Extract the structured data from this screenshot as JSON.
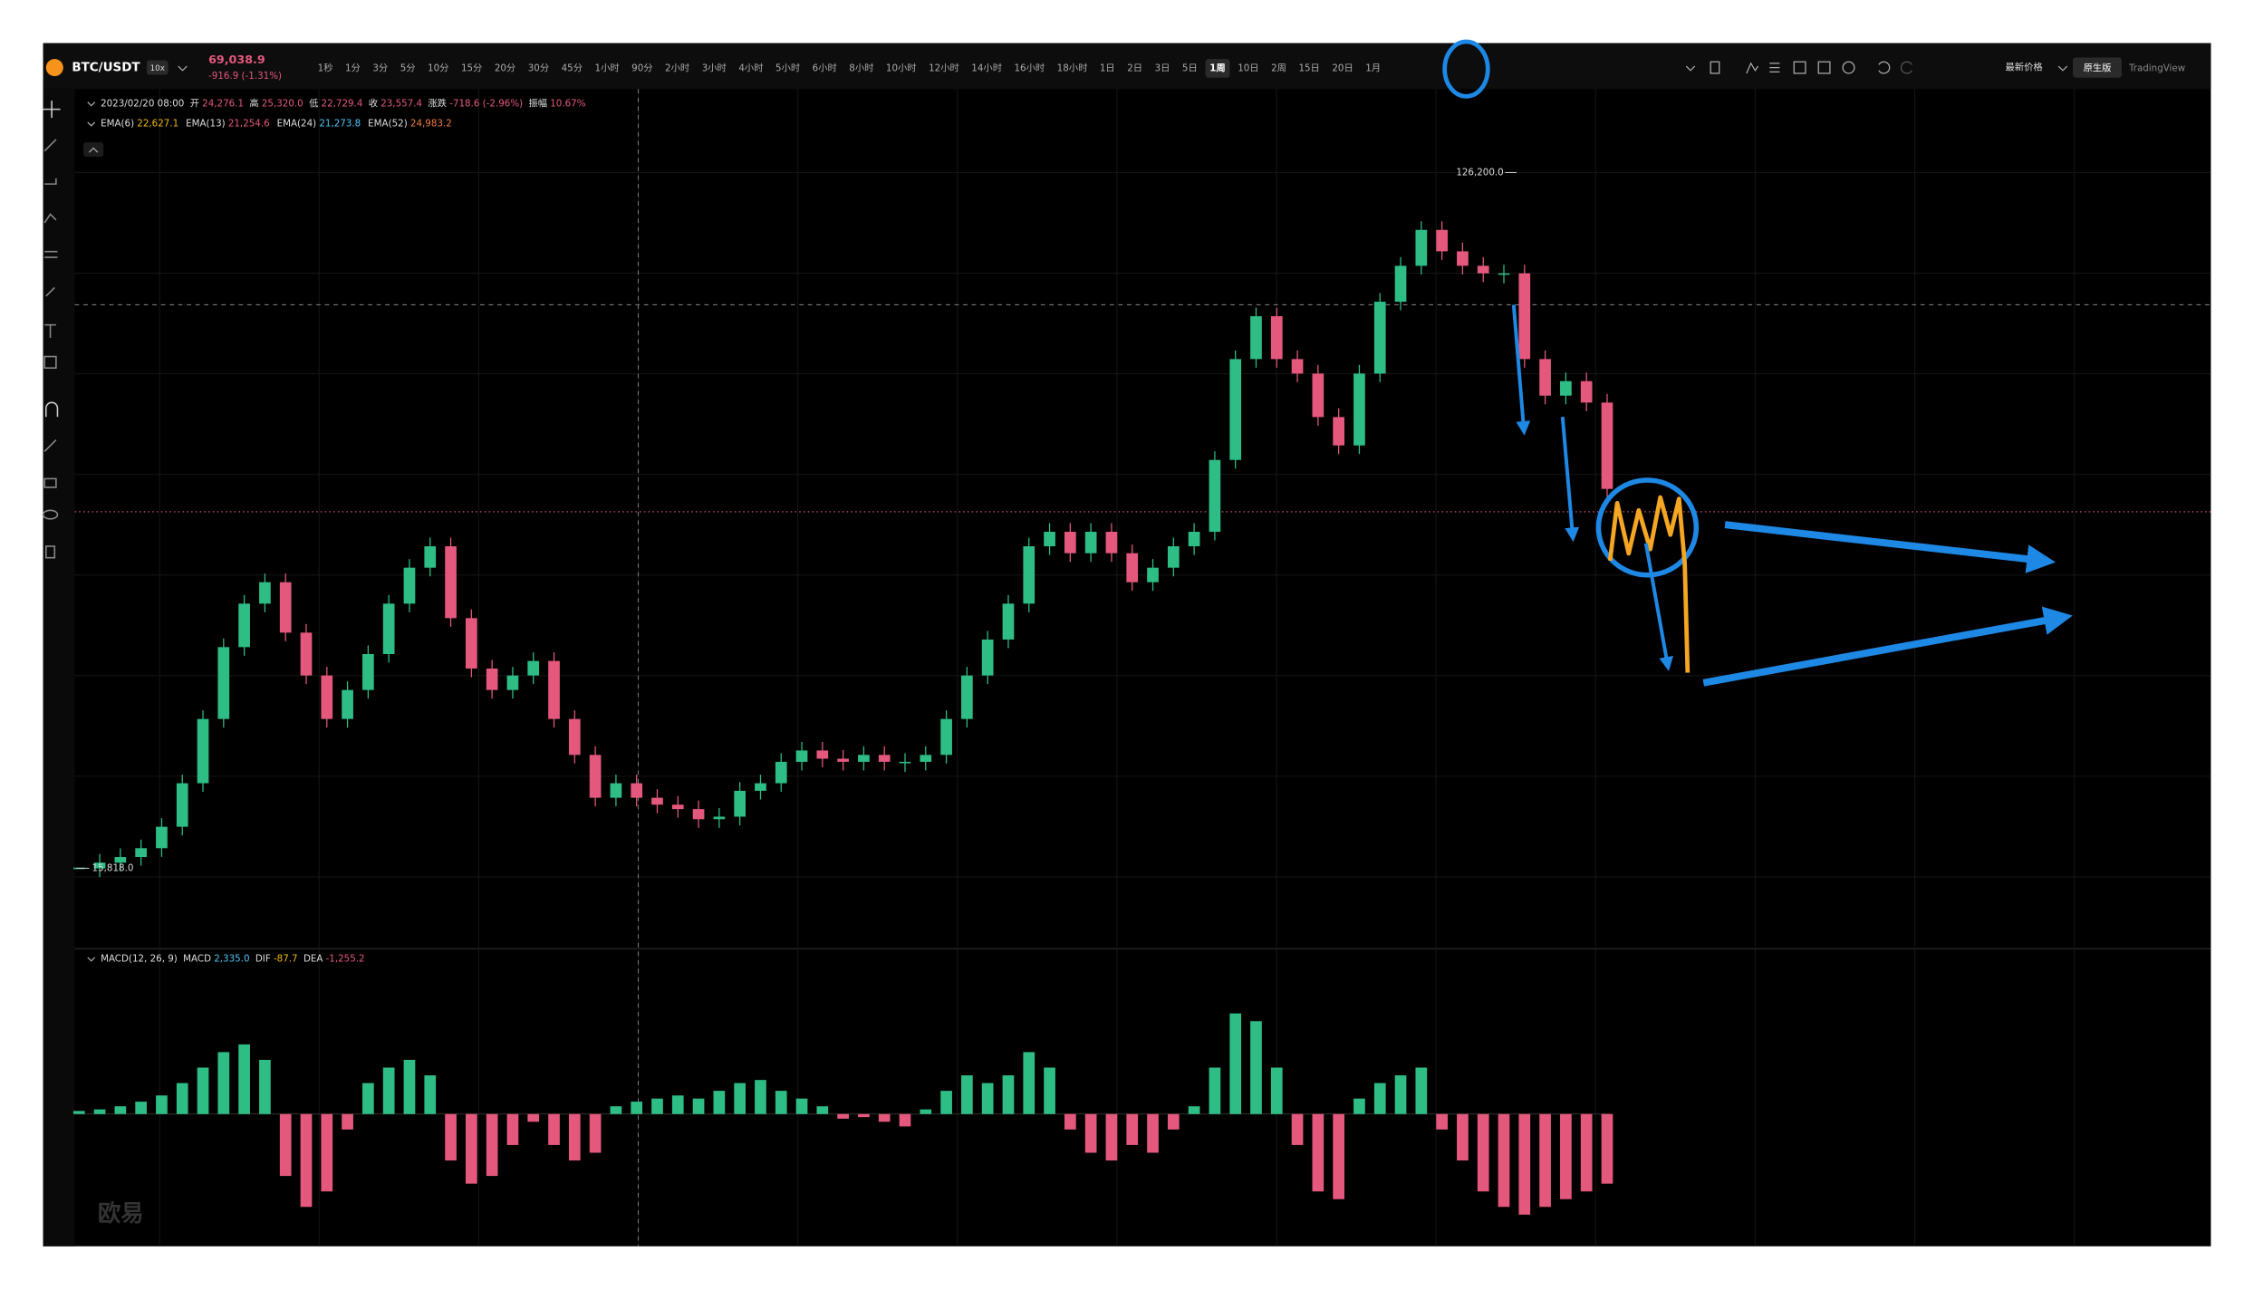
{
  "toolbar": {
    "symbol": "BTC/USDT",
    "leverage": "10x",
    "last_price": "69,038.9",
    "change": "-916.9 (-1.31%)",
    "intervals": [
      "1秒",
      "1分",
      "3分",
      "5分",
      "10分",
      "15分",
      "20分",
      "30分",
      "45分",
      "1小时",
      "90分",
      "2小时",
      "3小时",
      "4小时",
      "5小时",
      "6小时",
      "8小时",
      "10小时",
      "12小时",
      "14小时",
      "16小时",
      "18小时",
      "1日",
      "2日",
      "3日",
      "5日",
      "1周",
      "10日",
      "2周",
      "15日",
      "20日",
      "1月"
    ],
    "active_interval": 26,
    "price_mode": "最新价格",
    "views": [
      "原生版",
      "TradingView"
    ]
  },
  "ohlc_legend": {
    "date": "2023/02/20 08:00",
    "fields": [
      {
        "label": "开",
        "value": "24,276.1"
      },
      {
        "label": "高",
        "value": "25,320.0"
      },
      {
        "label": "低",
        "value": "22,729.4"
      },
      {
        "label": "收",
        "value": "23,557.4"
      },
      {
        "label": "涨跌",
        "value": "-718.6 (-2.96%)"
      },
      {
        "label": "振幅",
        "value": "10.67%"
      }
    ]
  },
  "ema_legend": [
    {
      "label": "EMA(6)",
      "value": "22,627.1",
      "color": "#f0b90b"
    },
    {
      "label": "EMA(13)",
      "value": "21,254.6",
      "color": "#e4587d"
    },
    {
      "label": "EMA(24)",
      "value": "21,273.8",
      "color": "#4fc3f7"
    },
    {
      "label": "EMA(52)",
      "value": "24,983.2",
      "color": "#f07b3f"
    }
  ],
  "macd_legend": {
    "title": "MACD(12, 26, 9)",
    "fields": [
      {
        "label": "MACD",
        "value": "2,335.0",
        "color": "#4fc3f7"
      },
      {
        "label": "DIF",
        "value": "-87.7",
        "color": "#f0b90b"
      },
      {
        "label": "DEA",
        "value": "-1,255.2",
        "color": "#e4587d"
      }
    ]
  },
  "chart_data": {
    "type": "candlestick",
    "closes": [
      15800,
      16700,
      17600,
      19000,
      22400,
      29300,
      39500,
      50900,
      57800,
      61200,
      53200,
      46400,
      39500,
      44100,
      49800,
      57800,
      63500,
      66900,
      55500,
      47500,
      44100,
      46400,
      48700,
      39500,
      33800,
      27000,
      29300,
      27000,
      25900,
      25200,
      23600,
      24000,
      28100,
      29300,
      32700,
      34500,
      33200,
      32700,
      33800,
      32700,
      32700,
      33800,
      39500,
      46400,
      52100,
      57800,
      66900,
      69200,
      65800,
      69200,
      65800,
      61200,
      63500,
      66900,
      69200,
      80600,
      96600,
      103400,
      96600,
      94300,
      87400,
      82900,
      94300,
      105700,
      111400,
      117100,
      113700,
      111400,
      110200,
      110200,
      96600,
      90800,
      93100,
      89700,
      76000
    ],
    "macd_histogram": [
      120,
      180,
      300,
      480,
      720,
      1200,
      1800,
      2400,
      2700,
      2100,
      -2400,
      -3600,
      -3000,
      -600,
      1200,
      1800,
      2100,
      1500,
      -1800,
      -2700,
      -2400,
      -1200,
      -300,
      -1200,
      -1800,
      -1500,
      300,
      480,
      600,
      720,
      600,
      900,
      1200,
      1320,
      900,
      600,
      300,
      -180,
      -120,
      -300,
      -480,
      180,
      900,
      1500,
      1200,
      1500,
      2400,
      1800,
      -600,
      -1500,
      -1800,
      -1200,
      -1500,
      -600,
      300,
      1800,
      3900,
      3600,
      1800,
      -1200,
      -3000,
      -3300,
      600,
      1200,
      1500,
      1800,
      -600,
      -1800,
      -3000,
      -3600,
      -3900,
      -3600,
      -3300,
      -3000,
      -2700
    ],
    "high_label": {
      "value": 126200,
      "label": "126,200.0"
    },
    "low_label": {
      "value": 15818,
      "label": "15,818.0"
    },
    "up_color": "#2ebd85",
    "down_color": "#e4587d"
  },
  "watermark": "欧易"
}
